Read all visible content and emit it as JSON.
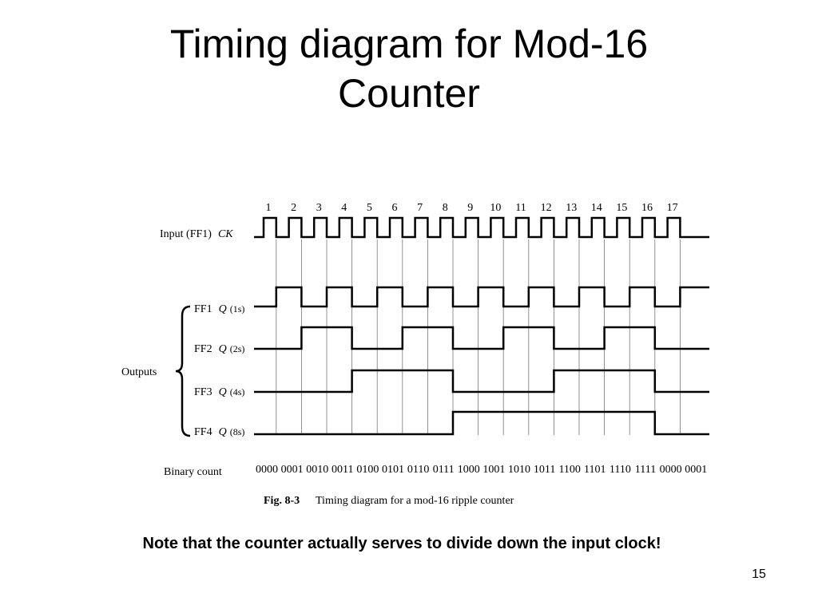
{
  "title": "Timing diagram for Mod-16 Counter",
  "diagram": {
    "clock_numbers": [
      "1",
      "2",
      "3",
      "4",
      "5",
      "6",
      "7",
      "8",
      "9",
      "10",
      "11",
      "12",
      "13",
      "14",
      "15",
      "16",
      "17"
    ],
    "signals": [
      {
        "name": "Input (FF1)",
        "signal": "CK"
      },
      {
        "name": "FF1",
        "signal": "Q",
        "weight": "(1s)"
      },
      {
        "name": "FF2",
        "signal": "Q",
        "weight": "(2s)"
      },
      {
        "name": "FF3",
        "signal": "Q",
        "weight": "(4s)"
      },
      {
        "name": "FF4",
        "signal": "Q",
        "weight": "(8s)"
      }
    ],
    "outputs_label": "Outputs",
    "binary_count_label": "Binary count",
    "binary_counts": [
      "0000",
      "0001",
      "0010",
      "0011",
      "0100",
      "0101",
      "0110",
      "0111",
      "1000",
      "1001",
      "1010",
      "1011",
      "1100",
      "1101",
      "1110",
      "1111",
      "0000",
      "0001"
    ],
    "caption_figure": "Fig. 8-3",
    "caption_text": "Timing diagram for a mod-16 ripple counter"
  },
  "note": "Note that the counter actually serves to divide down the input clock!",
  "page_number": "15"
}
